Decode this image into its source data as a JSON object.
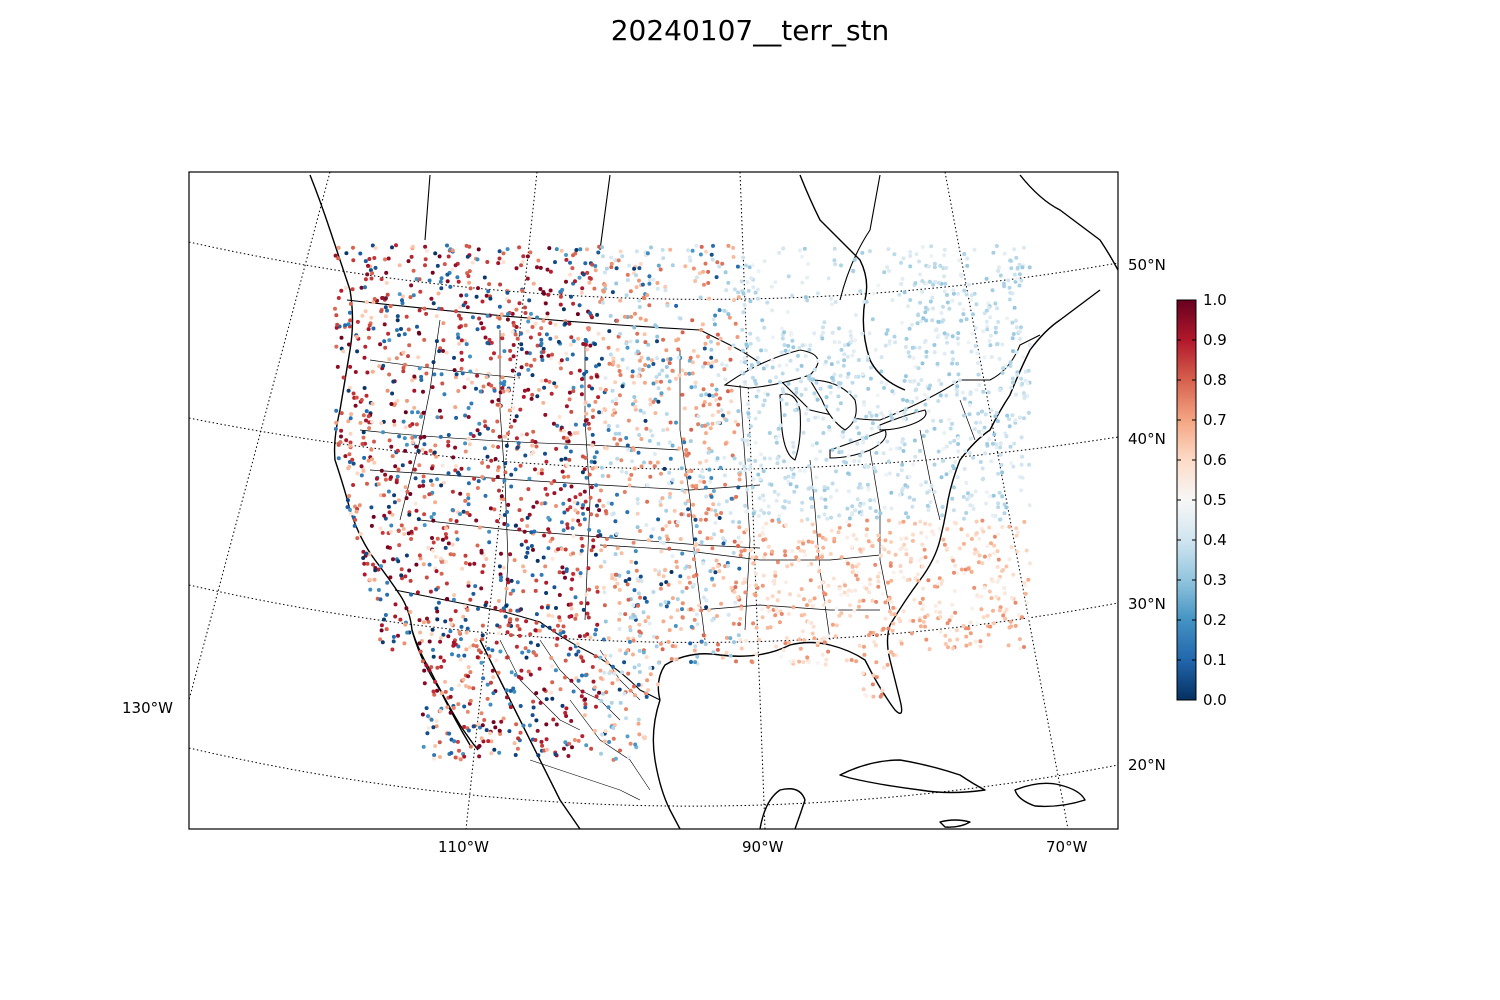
{
  "title": "20240107__terr_stn",
  "map": {
    "projection": "lambert-conformal",
    "extent": "North America (contiguous US, southern Canada, northern Mexico, Caribbean)",
    "features": [
      "coastlines",
      "country-borders",
      "state-province-borders",
      "lakes"
    ],
    "meridian_labels": [
      "130°W",
      "110°W",
      "90°W",
      "70°W"
    ],
    "parallel_labels": [
      "50°N",
      "40°N",
      "30°N",
      "20°N"
    ],
    "graticule_style": "dotted",
    "colors": {
      "border": "#000000",
      "background": "#ffffff"
    }
  },
  "stations": {
    "description": "station dots colored by value 0–1",
    "value_range": [
      0,
      1
    ]
  },
  "colorbar": {
    "cmap": "RdBu_r",
    "ticks": [
      "0.0",
      "0.1",
      "0.2",
      "0.3",
      "0.4",
      "0.5",
      "0.6",
      "0.7",
      "0.8",
      "0.9",
      "1.0"
    ],
    "stops": [
      "#053061",
      "#2166ac",
      "#4393c3",
      "#92c5de",
      "#d1e5f0",
      "#f7f7f7",
      "#fddbc7",
      "#f4a582",
      "#d6604d",
      "#b2182b",
      "#67001f"
    ]
  }
}
